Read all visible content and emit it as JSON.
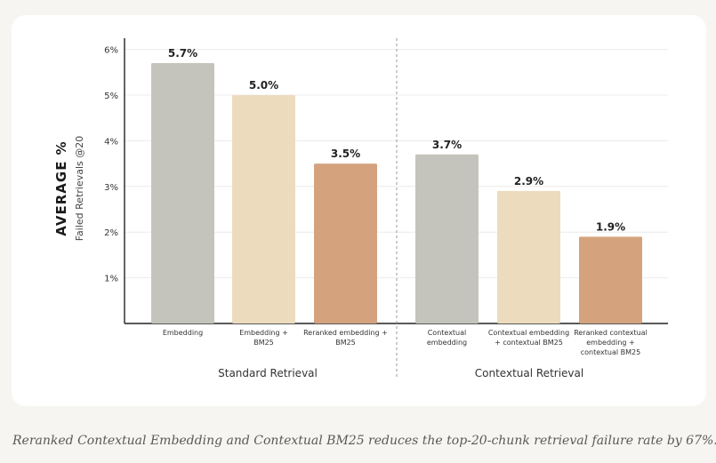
{
  "chart_data": {
    "type": "bar",
    "ylabel": "AVERAGE %",
    "ylabel_sub": "Failed Retrievals @20",
    "ylim": [
      0,
      6.4
    ],
    "yticks": [
      1,
      2,
      3,
      4,
      5,
      6
    ],
    "ytick_suffix": "%",
    "grid": true,
    "groups": [
      {
        "name": "Standard Retrieval",
        "bars": [
          {
            "category": [
              "Embedding"
            ],
            "value": 5.7,
            "label": "5.7%",
            "color": "#c5c4bc"
          },
          {
            "category": [
              "Embedding +",
              "BM25"
            ],
            "value": 5.0,
            "label": "5.0%",
            "color": "#ecdcbd"
          },
          {
            "category": [
              "Reranked embedding +",
              "BM25"
            ],
            "value": 3.5,
            "label": "3.5%",
            "color": "#d4a37d"
          }
        ]
      },
      {
        "name": "Contextual Retrieval",
        "bars": [
          {
            "category": [
              "Contextual",
              "embedding"
            ],
            "value": 3.7,
            "label": "3.7%",
            "color": "#c5c4bc"
          },
          {
            "category": [
              "Contextual embedding",
              "+ contextual BM25"
            ],
            "value": 2.9,
            "label": "2.9%",
            "color": "#ecdcbd"
          },
          {
            "category": [
              "Reranked contextual",
              "embedding +",
              "contextual BM25"
            ],
            "value": 1.9,
            "label": "1.9%",
            "color": "#d4a37d"
          }
        ]
      }
    ]
  },
  "caption": "Reranked Contextual Embedding and Contextual BM25 reduces the top-20-chunk retrieval failure rate by 67%."
}
